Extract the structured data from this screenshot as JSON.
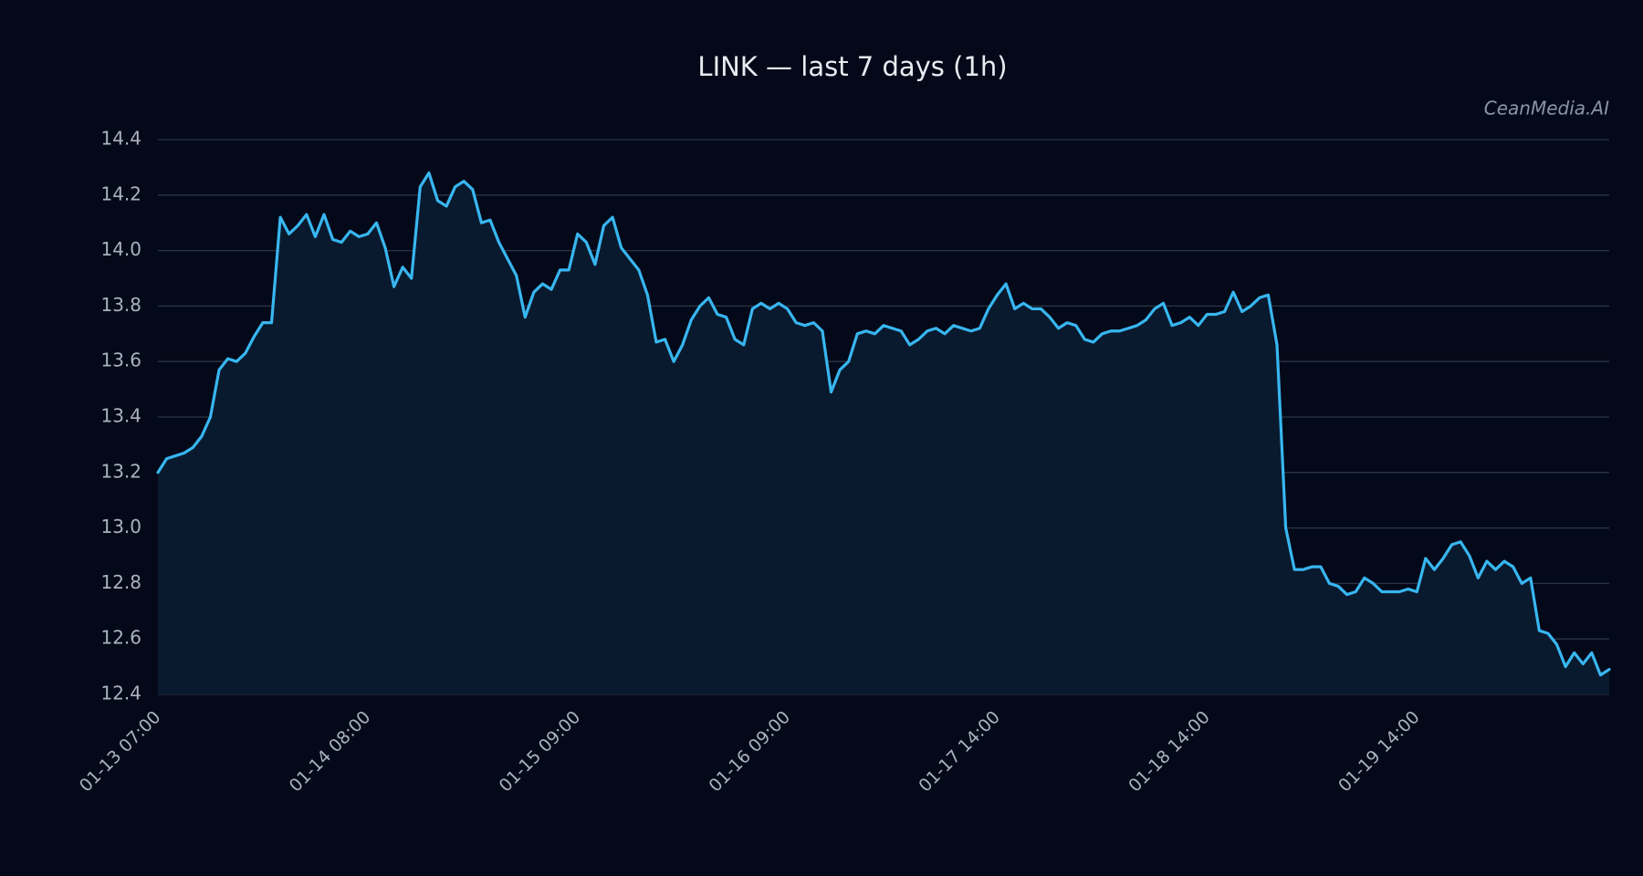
{
  "chart_data": {
    "type": "line",
    "title": "LINK — last 7 days (1h)",
    "watermark": "CeanMedia.AI",
    "categories": [
      "01-13 07:00",
      null,
      null,
      null,
      null,
      null,
      null,
      null,
      null,
      null,
      null,
      null,
      null,
      null,
      null,
      null,
      null,
      null,
      null,
      null,
      null,
      null,
      null,
      null,
      "01-14 08:00",
      null,
      null,
      null,
      null,
      null,
      null,
      null,
      null,
      null,
      null,
      null,
      null,
      null,
      null,
      null,
      null,
      null,
      null,
      null,
      null,
      null,
      null,
      null,
      "01-15 09:00",
      null,
      null,
      null,
      null,
      null,
      null,
      null,
      null,
      null,
      null,
      null,
      null,
      null,
      null,
      null,
      null,
      null,
      null,
      null,
      null,
      null,
      null,
      null,
      "01-16 09:00",
      null,
      null,
      null,
      null,
      null,
      null,
      null,
      null,
      null,
      null,
      null,
      null,
      null,
      null,
      null,
      null,
      null,
      null,
      null,
      null,
      null,
      null,
      null,
      "01-17 14:00",
      null,
      null,
      null,
      null,
      null,
      null,
      null,
      null,
      null,
      null,
      null,
      null,
      null,
      null,
      null,
      null,
      null,
      null,
      null,
      null,
      null,
      null,
      null,
      "01-18 14:00",
      null,
      null,
      null,
      null,
      null,
      null,
      null,
      null,
      null,
      null,
      null,
      null,
      null,
      null,
      null,
      null,
      null,
      null,
      null,
      null,
      null,
      null,
      null,
      "01-19 14:00",
      null,
      null,
      null,
      null,
      null,
      null,
      null,
      null,
      null,
      null,
      null,
      null,
      null,
      null,
      null,
      null,
      null,
      null,
      null,
      null,
      null,
      null
    ],
    "series": [
      {
        "name": "LINK",
        "color": "#38b6f0",
        "values": [
          13.2,
          13.25,
          13.26,
          13.27,
          13.29,
          13.33,
          13.4,
          13.57,
          13.61,
          13.6,
          13.63,
          13.69,
          13.74,
          13.74,
          14.12,
          14.06,
          14.09,
          14.13,
          14.05,
          14.13,
          14.04,
          14.03,
          14.07,
          14.05,
          14.06,
          14.1,
          14.01,
          13.87,
          13.94,
          13.9,
          14.23,
          14.28,
          14.18,
          14.16,
          14.23,
          14.25,
          14.22,
          14.1,
          14.11,
          14.03,
          13.97,
          13.91,
          13.76,
          13.85,
          13.88,
          13.86,
          13.93,
          13.93,
          14.06,
          14.03,
          13.95,
          14.09,
          14.12,
          14.01,
          13.97,
          13.93,
          13.84,
          13.67,
          13.68,
          13.6,
          13.66,
          13.75,
          13.8,
          13.83,
          13.77,
          13.76,
          13.68,
          13.66,
          13.79,
          13.81,
          13.79,
          13.81,
          13.79,
          13.74,
          13.73,
          13.74,
          13.71,
          13.49,
          13.57,
          13.6,
          13.7,
          13.71,
          13.7,
          13.73,
          13.72,
          13.71,
          13.66,
          13.68,
          13.71,
          13.72,
          13.7,
          13.73,
          13.72,
          13.71,
          13.72,
          13.79,
          13.84,
          13.88,
          13.79,
          13.81,
          13.79,
          13.79,
          13.76,
          13.72,
          13.74,
          13.73,
          13.68,
          13.67,
          13.7,
          13.71,
          13.71,
          13.72,
          13.73,
          13.75,
          13.79,
          13.81,
          13.73,
          13.74,
          13.76,
          13.73,
          13.77,
          13.77,
          13.78,
          13.85,
          13.78,
          13.8,
          13.83,
          13.84,
          13.66,
          13.0,
          12.85,
          12.85,
          12.86,
          12.86,
          12.8,
          12.79,
          12.76,
          12.77,
          12.82,
          12.8,
          12.77,
          12.77,
          12.77,
          12.78,
          12.77,
          12.89,
          12.85,
          12.89,
          12.94,
          12.95,
          12.9,
          12.82,
          12.88,
          12.85,
          12.88,
          12.86,
          12.8,
          12.82,
          12.63,
          12.62,
          12.58,
          12.5,
          12.55,
          12.51,
          12.55,
          12.47,
          12.49
        ]
      }
    ],
    "ylim": [
      12.4,
      14.4
    ],
    "yticks": [
      12.4,
      12.6,
      12.8,
      {
        "value": 13,
        "label": "13.0"
      },
      13.2,
      13.4,
      13.6,
      13.8,
      {
        "value": 14,
        "label": "14.0"
      },
      14.2,
      14.4
    ],
    "grid": true,
    "area": true
  }
}
